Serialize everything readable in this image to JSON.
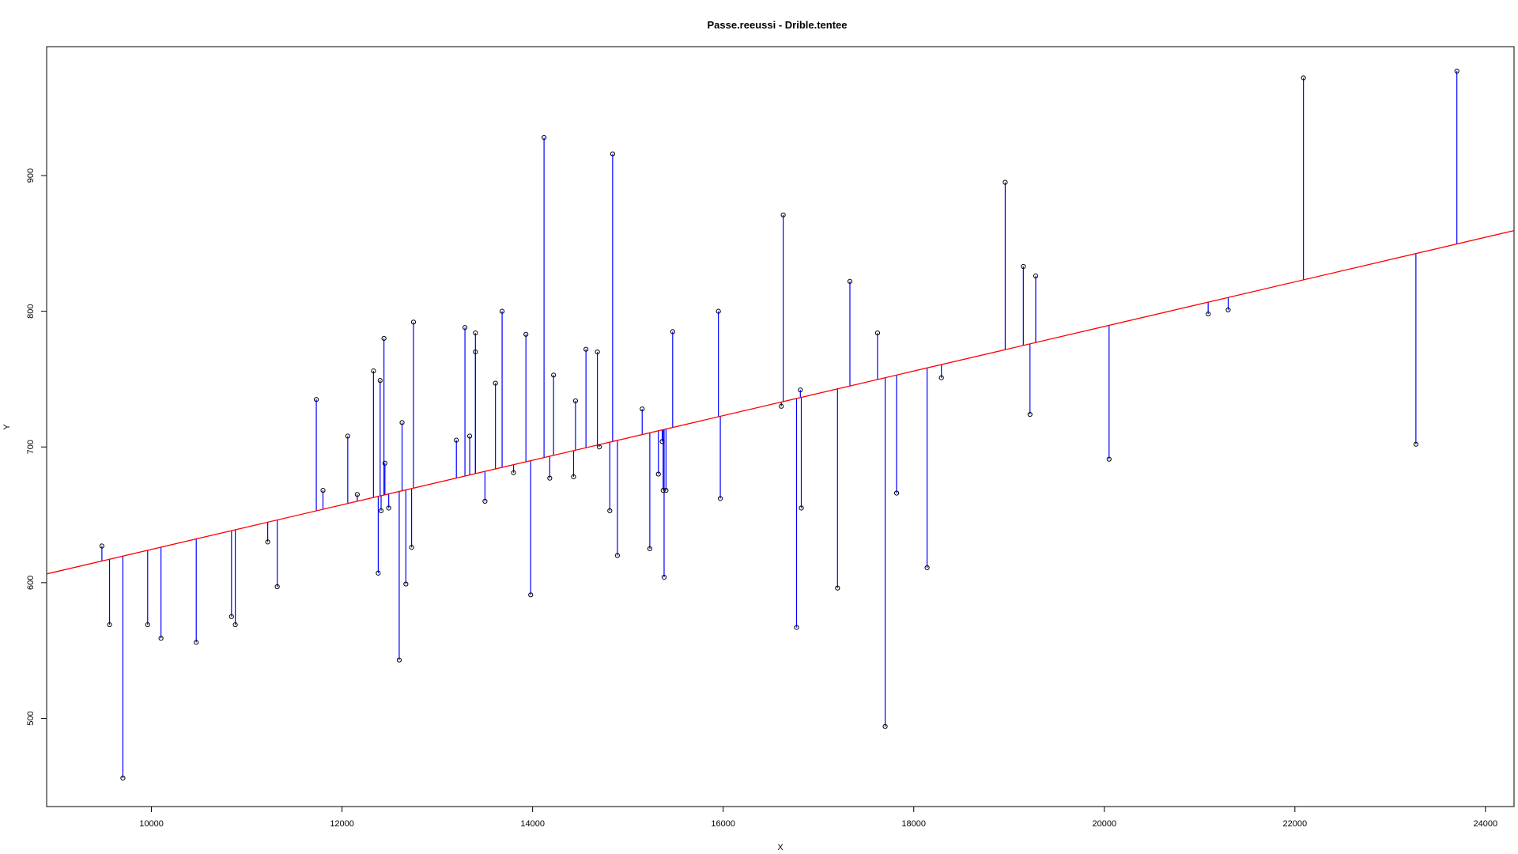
{
  "chart_data": {
    "type": "scatter",
    "title": "Passe.reeussi  -  Drible.tentee",
    "xlabel": "X",
    "ylabel": "Y",
    "xlim": [
      8900,
      24300
    ],
    "ylim": [
      435,
      995
    ],
    "x_ticks": [
      10000,
      12000,
      14000,
      16000,
      18000,
      20000,
      22000,
      24000
    ],
    "y_ticks": [
      500,
      600,
      700,
      800,
      900
    ],
    "grid": false,
    "legend": "none",
    "regression_line": {
      "slope": 0.01643,
      "intercept": 460.2,
      "color": "#ff0000"
    },
    "residual_color": "#0000ff",
    "point_color": "#000000",
    "points": [
      {
        "x": 9480,
        "y": 627
      },
      {
        "x": 9560,
        "y": 569
      },
      {
        "x": 9700,
        "y": 456
      },
      {
        "x": 9960,
        "y": 569
      },
      {
        "x": 10100,
        "y": 559
      },
      {
        "x": 10470,
        "y": 556
      },
      {
        "x": 10840,
        "y": 575
      },
      {
        "x": 10880,
        "y": 569
      },
      {
        "x": 11220,
        "y": 630
      },
      {
        "x": 11320,
        "y": 597
      },
      {
        "x": 11730,
        "y": 735
      },
      {
        "x": 11800,
        "y": 668
      },
      {
        "x": 12060,
        "y": 708
      },
      {
        "x": 12160,
        "y": 665
      },
      {
        "x": 12330,
        "y": 756
      },
      {
        "x": 12380,
        "y": 607
      },
      {
        "x": 12400,
        "y": 749
      },
      {
        "x": 12410,
        "y": 653
      },
      {
        "x": 12440,
        "y": 780
      },
      {
        "x": 12450,
        "y": 688
      },
      {
        "x": 12490,
        "y": 655
      },
      {
        "x": 12600,
        "y": 543
      },
      {
        "x": 12630,
        "y": 718
      },
      {
        "x": 12670,
        "y": 599
      },
      {
        "x": 12730,
        "y": 626
      },
      {
        "x": 12750,
        "y": 792
      },
      {
        "x": 13200,
        "y": 705
      },
      {
        "x": 13290,
        "y": 788
      },
      {
        "x": 13340,
        "y": 708
      },
      {
        "x": 13400,
        "y": 784
      },
      {
        "x": 13400,
        "y": 770
      },
      {
        "x": 13500,
        "y": 660
      },
      {
        "x": 13610,
        "y": 747
      },
      {
        "x": 13680,
        "y": 800
      },
      {
        "x": 13800,
        "y": 681
      },
      {
        "x": 13930,
        "y": 783
      },
      {
        "x": 13980,
        "y": 591
      },
      {
        "x": 14120,
        "y": 928
      },
      {
        "x": 14180,
        "y": 677
      },
      {
        "x": 14220,
        "y": 753
      },
      {
        "x": 14430,
        "y": 678
      },
      {
        "x": 14450,
        "y": 734
      },
      {
        "x": 14560,
        "y": 772
      },
      {
        "x": 14680,
        "y": 770
      },
      {
        "x": 14700,
        "y": 700
      },
      {
        "x": 14810,
        "y": 653
      },
      {
        "x": 14840,
        "y": 916
      },
      {
        "x": 14890,
        "y": 620
      },
      {
        "x": 15150,
        "y": 728
      },
      {
        "x": 15230,
        "y": 625
      },
      {
        "x": 15320,
        "y": 680
      },
      {
        "x": 15360,
        "y": 704
      },
      {
        "x": 15370,
        "y": 668
      },
      {
        "x": 15380,
        "y": 604
      },
      {
        "x": 15400,
        "y": 668
      },
      {
        "x": 15470,
        "y": 785
      },
      {
        "x": 15950,
        "y": 800
      },
      {
        "x": 15970,
        "y": 662
      },
      {
        "x": 16610,
        "y": 730
      },
      {
        "x": 16630,
        "y": 871
      },
      {
        "x": 16770,
        "y": 567
      },
      {
        "x": 16810,
        "y": 742
      },
      {
        "x": 16820,
        "y": 655
      },
      {
        "x": 17200,
        "y": 596
      },
      {
        "x": 17330,
        "y": 822
      },
      {
        "x": 17620,
        "y": 784
      },
      {
        "x": 17700,
        "y": 494
      },
      {
        "x": 17820,
        "y": 666
      },
      {
        "x": 18140,
        "y": 611
      },
      {
        "x": 18290,
        "y": 751
      },
      {
        "x": 18960,
        "y": 895
      },
      {
        "x": 19150,
        "y": 833
      },
      {
        "x": 19220,
        "y": 724
      },
      {
        "x": 19280,
        "y": 826
      },
      {
        "x": 20050,
        "y": 691
      },
      {
        "x": 21090,
        "y": 798
      },
      {
        "x": 21300,
        "y": 801
      },
      {
        "x": 22090,
        "y": 972
      },
      {
        "x": 23270,
        "y": 702
      },
      {
        "x": 23700,
        "y": 977
      }
    ]
  }
}
